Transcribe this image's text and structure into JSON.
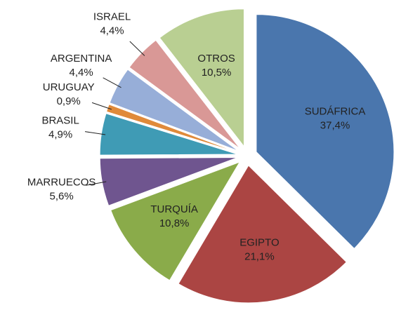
{
  "chart_data": {
    "type": "pie",
    "categories": [
      "SUDÁFRICA",
      "EGIPTO",
      "TURQUÍA",
      "MARRUECOS",
      "BRASIL",
      "URUGUAY",
      "ARGENTINA",
      "ISRAEL",
      "OTROS"
    ],
    "values": [
      37.4,
      21.1,
      10.8,
      5.6,
      4.9,
      0.9,
      4.4,
      4.4,
      10.5
    ],
    "value_labels": [
      "37,4%",
      "21,1%",
      "10,8%",
      "5,6%",
      "4,9%",
      "0,9%",
      "4,4%",
      "4,4%",
      "10,5%"
    ],
    "colors": [
      "#4a76ad",
      "#ab4543",
      "#8aab4a",
      "#6f558f",
      "#3f9bb5",
      "#e08a3a",
      "#97aed8",
      "#d99896",
      "#b9cf92"
    ]
  }
}
